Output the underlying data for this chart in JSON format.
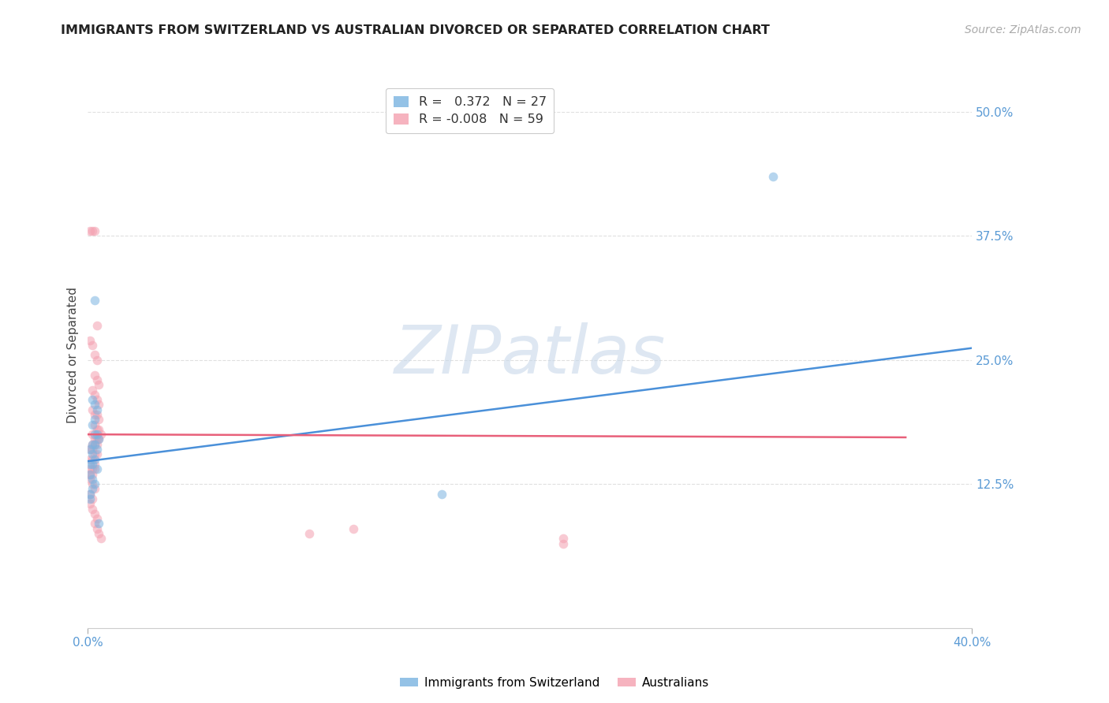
{
  "title": "IMMIGRANTS FROM SWITZERLAND VS AUSTRALIAN DIVORCED OR SEPARATED CORRELATION CHART",
  "source": "Source: ZipAtlas.com",
  "ylabel": "Divorced or Separated",
  "xlim": [
    0.0,
    0.4
  ],
  "ylim": [
    -0.02,
    0.53
  ],
  "y_ticks": [
    0.0,
    0.125,
    0.25,
    0.375,
    0.5
  ],
  "y_tick_labels": [
    "",
    "12.5%",
    "25.0%",
    "37.5%",
    "50.0%"
  ],
  "x_ticks": [
    0.0,
    0.4
  ],
  "x_tick_labels": [
    "0.0%",
    "40.0%"
  ],
  "legend_entries": [
    {
      "label_r": "R = ",
      "label_rv": " 0.372",
      "label_n": "  N = ",
      "label_nv": "27",
      "color": "#7ab3e0"
    },
    {
      "label_r": "R = ",
      "label_rv": "-0.008",
      "label_n": "  N = ",
      "label_nv": "59",
      "color": "#f4a0b0"
    }
  ],
  "bottom_legend": [
    {
      "label": "Immigrants from Switzerland",
      "color": "#7ab3e0"
    },
    {
      "label": "Australians",
      "color": "#f4a0b0"
    }
  ],
  "blue_scatter": [
    [
      0.003,
      0.31
    ],
    [
      0.002,
      0.21
    ],
    [
      0.003,
      0.205
    ],
    [
      0.004,
      0.2
    ],
    [
      0.003,
      0.19
    ],
    [
      0.002,
      0.185
    ],
    [
      0.004,
      0.175
    ],
    [
      0.003,
      0.175
    ],
    [
      0.005,
      0.17
    ],
    [
      0.002,
      0.165
    ],
    [
      0.003,
      0.165
    ],
    [
      0.001,
      0.16
    ],
    [
      0.004,
      0.16
    ],
    [
      0.002,
      0.155
    ],
    [
      0.003,
      0.15
    ],
    [
      0.001,
      0.145
    ],
    [
      0.002,
      0.145
    ],
    [
      0.004,
      0.14
    ],
    [
      0.001,
      0.135
    ],
    [
      0.002,
      0.13
    ],
    [
      0.003,
      0.125
    ],
    [
      0.002,
      0.12
    ],
    [
      0.001,
      0.115
    ],
    [
      0.001,
      0.11
    ],
    [
      0.31,
      0.435
    ],
    [
      0.005,
      0.085
    ],
    [
      0.16,
      0.115
    ]
  ],
  "pink_scatter": [
    [
      0.001,
      0.38
    ],
    [
      0.002,
      0.38
    ],
    [
      0.003,
      0.38
    ],
    [
      0.004,
      0.285
    ],
    [
      0.001,
      0.27
    ],
    [
      0.002,
      0.265
    ],
    [
      0.003,
      0.255
    ],
    [
      0.004,
      0.25
    ],
    [
      0.003,
      0.235
    ],
    [
      0.004,
      0.23
    ],
    [
      0.005,
      0.225
    ],
    [
      0.002,
      0.22
    ],
    [
      0.003,
      0.215
    ],
    [
      0.004,
      0.21
    ],
    [
      0.005,
      0.205
    ],
    [
      0.002,
      0.2
    ],
    [
      0.003,
      0.195
    ],
    [
      0.004,
      0.195
    ],
    [
      0.005,
      0.19
    ],
    [
      0.003,
      0.185
    ],
    [
      0.004,
      0.18
    ],
    [
      0.005,
      0.18
    ],
    [
      0.006,
      0.175
    ],
    [
      0.002,
      0.175
    ],
    [
      0.003,
      0.17
    ],
    [
      0.004,
      0.17
    ],
    [
      0.005,
      0.17
    ],
    [
      0.002,
      0.165
    ],
    [
      0.003,
      0.165
    ],
    [
      0.004,
      0.165
    ],
    [
      0.001,
      0.16
    ],
    [
      0.002,
      0.16
    ],
    [
      0.003,
      0.155
    ],
    [
      0.004,
      0.155
    ],
    [
      0.001,
      0.15
    ],
    [
      0.002,
      0.15
    ],
    [
      0.003,
      0.145
    ],
    [
      0.001,
      0.14
    ],
    [
      0.002,
      0.14
    ],
    [
      0.003,
      0.14
    ],
    [
      0.001,
      0.135
    ],
    [
      0.002,
      0.135
    ],
    [
      0.001,
      0.13
    ],
    [
      0.002,
      0.125
    ],
    [
      0.003,
      0.12
    ],
    [
      0.001,
      0.115
    ],
    [
      0.002,
      0.11
    ],
    [
      0.001,
      0.105
    ],
    [
      0.002,
      0.1
    ],
    [
      0.003,
      0.095
    ],
    [
      0.004,
      0.09
    ],
    [
      0.003,
      0.085
    ],
    [
      0.004,
      0.08
    ],
    [
      0.005,
      0.075
    ],
    [
      0.006,
      0.07
    ],
    [
      0.12,
      0.08
    ],
    [
      0.215,
      0.065
    ],
    [
      0.215,
      0.07
    ],
    [
      0.1,
      0.075
    ]
  ],
  "blue_line": {
    "x": [
      0.0,
      0.4
    ],
    "y": [
      0.148,
      0.262
    ],
    "color": "#4a90d9",
    "linewidth": 1.8
  },
  "pink_line": {
    "x": [
      0.0,
      0.37
    ],
    "y": [
      0.175,
      0.172
    ],
    "color": "#e8607a",
    "linewidth": 1.8,
    "linestyle": "-"
  },
  "watermark_text": "ZIPatlas",
  "watermark_color": "#c8d8ea",
  "watermark_alpha": 0.6,
  "background_color": "#ffffff",
  "grid_color": "#e0e0e0",
  "title_fontsize": 11.5,
  "source_fontsize": 10,
  "axis_tick_color": "#5b9bd5",
  "scatter_alpha": 0.55,
  "scatter_size": 70
}
